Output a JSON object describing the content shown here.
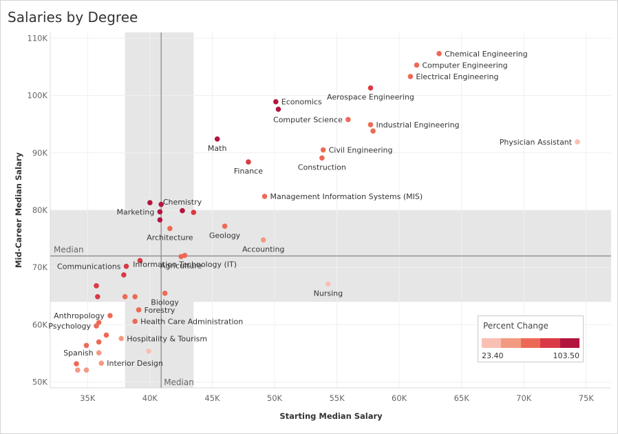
{
  "chart_data": {
    "type": "scatter",
    "title": "Salaries by Degree",
    "xlabel": "Starting Median Salary",
    "ylabel": "Mid-Career Median Salary",
    "xlim": [
      32000,
      77000
    ],
    "ylim": [
      49000,
      111000
    ],
    "x_ticks": [
      35000,
      40000,
      45000,
      50000,
      55000,
      60000,
      65000,
      70000,
      75000
    ],
    "x_tick_labels": [
      "35K",
      "40K",
      "45K",
      "50K",
      "55K",
      "60K",
      "65K",
      "70K",
      "75K"
    ],
    "y_ticks": [
      50000,
      60000,
      70000,
      80000,
      90000,
      100000,
      110000
    ],
    "y_tick_labels": [
      "50K",
      "60K",
      "70K",
      "80K",
      "90K",
      "100K",
      "110K"
    ],
    "median_x": 40900,
    "median_y": 72000,
    "median_label": "Median",
    "iqr_x": [
      38000,
      43500
    ],
    "iqr_y": [
      64000,
      80000
    ],
    "grid": true,
    "color_scale": [
      "#f9bfb3",
      "#f39a82",
      "#ec6a55",
      "#d93a45",
      "#b2163f"
    ],
    "legend": {
      "title": "Percent Change",
      "min_label": "23.40",
      "max_label": "103.50",
      "position": "bottom-right"
    },
    "points": [
      {
        "label": "Chemical Engineering",
        "x": 63200,
        "y": 107300,
        "c": 2
      },
      {
        "label": "Computer Engineering",
        "x": 61400,
        "y": 105300,
        "c": 2
      },
      {
        "label": "Electrical Engineering",
        "x": 60900,
        "y": 103300,
        "c": 2
      },
      {
        "label": "Aerospace Engineering",
        "x": 57700,
        "y": 101300,
        "c": 3
      },
      {
        "label": "Economics",
        "x": 50100,
        "y": 98900,
        "c": 4
      },
      {
        "label": "",
        "x": 50300,
        "y": 97600,
        "c": 4
      },
      {
        "label": "Computer Science",
        "x": 55900,
        "y": 95800,
        "c": 2
      },
      {
        "label": "Industrial Engineering",
        "x": 57700,
        "y": 94900,
        "c": 2
      },
      {
        "label": "",
        "x": 57900,
        "y": 93800,
        "c": 2
      },
      {
        "label": "Physician Assistant",
        "x": 74300,
        "y": 91900,
        "c": 0
      },
      {
        "label": "Math",
        "x": 45400,
        "y": 92400,
        "c": 4
      },
      {
        "label": "Civil Engineering",
        "x": 53900,
        "y": 90500,
        "c": 2
      },
      {
        "label": "Construction",
        "x": 53800,
        "y": 89100,
        "c": 2
      },
      {
        "label": "Finance",
        "x": 47900,
        "y": 88400,
        "c": 3
      },
      {
        "label": "Management Information Systems (MIS)",
        "x": 49200,
        "y": 82400,
        "c": 2
      },
      {
        "label": "",
        "x": 40000,
        "y": 81300,
        "c": 4
      },
      {
        "label": "",
        "x": 40900,
        "y": 81000,
        "c": 4
      },
      {
        "label": "Chemistry",
        "x": 42600,
        "y": 79900,
        "c": 4
      },
      {
        "label": "",
        "x": 43500,
        "y": 79600,
        "c": 3
      },
      {
        "label": "Marketing",
        "x": 40800,
        "y": 79700,
        "c": 4
      },
      {
        "label": "",
        "x": 40800,
        "y": 78300,
        "c": 4
      },
      {
        "label": "Geology",
        "x": 46000,
        "y": 77200,
        "c": 2
      },
      {
        "label": "Architecture",
        "x": 41600,
        "y": 76800,
        "c": 2
      },
      {
        "label": "Accounting",
        "x": 49100,
        "y": 74800,
        "c": 1
      },
      {
        "label": "Information Technology (IT)",
        "x": 42800,
        "y": 72100,
        "c": 2
      },
      {
        "label": "Agriculture",
        "x": 42500,
        "y": 71900,
        "c": 2
      },
      {
        "label": "",
        "x": 39200,
        "y": 71200,
        "c": 3
      },
      {
        "label": "Communications",
        "x": 38100,
        "y": 70200,
        "c": 3
      },
      {
        "label": "",
        "x": 37900,
        "y": 68700,
        "c": 3
      },
      {
        "label": "Nursing",
        "x": 54300,
        "y": 67100,
        "c": 0
      },
      {
        "label": "",
        "x": 35700,
        "y": 66800,
        "c": 3
      },
      {
        "label": "Biology",
        "x": 41200,
        "y": 65500,
        "c": 2
      },
      {
        "label": "",
        "x": 35800,
        "y": 64900,
        "c": 3
      },
      {
        "label": "",
        "x": 38000,
        "y": 64900,
        "c": 2
      },
      {
        "label": "",
        "x": 38800,
        "y": 64900,
        "c": 2
      },
      {
        "label": "Forestry",
        "x": 39100,
        "y": 62600,
        "c": 2
      },
      {
        "label": "Anthropology",
        "x": 36800,
        "y": 61600,
        "c": 2
      },
      {
        "label": "Health Care Administration",
        "x": 38800,
        "y": 60600,
        "c": 2
      },
      {
        "label": "",
        "x": 35900,
        "y": 60400,
        "c": 2
      },
      {
        "label": "Psychology",
        "x": 35700,
        "y": 59800,
        "c": 2
      },
      {
        "label": "",
        "x": 36500,
        "y": 58200,
        "c": 2
      },
      {
        "label": "Hospitality & Tourism",
        "x": 37700,
        "y": 57600,
        "c": 1
      },
      {
        "label": "",
        "x": 35900,
        "y": 57000,
        "c": 2
      },
      {
        "label": "",
        "x": 34900,
        "y": 56400,
        "c": 2
      },
      {
        "label": "",
        "x": 39900,
        "y": 55400,
        "c": 0
      },
      {
        "label": "Spanish",
        "x": 35900,
        "y": 55100,
        "c": 1
      },
      {
        "label": "Interior Design",
        "x": 36100,
        "y": 53300,
        "c": 1
      },
      {
        "label": "",
        "x": 34100,
        "y": 53200,
        "c": 2
      },
      {
        "label": "",
        "x": 34200,
        "y": 52100,
        "c": 1
      },
      {
        "label": "",
        "x": 34900,
        "y": 52100,
        "c": 1
      }
    ]
  }
}
